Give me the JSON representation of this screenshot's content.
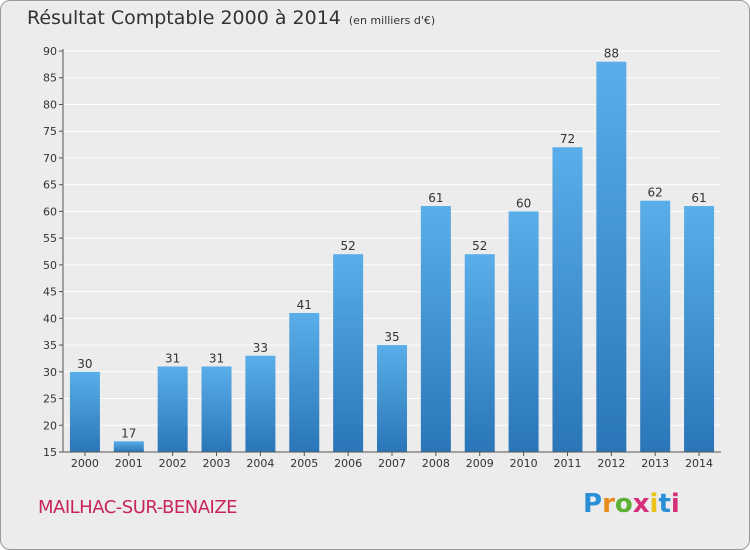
{
  "header": {
    "title": "Résultat Comptable 2000 à 2014",
    "subtitle": "(en milliers d'€)"
  },
  "commune": "MAILHAC-SUR-BENAIZE",
  "logo": {
    "letters": [
      "P",
      "r",
      "o",
      "x",
      "i",
      "t",
      "i"
    ],
    "colors": [
      "#2a8fd6",
      "#e98a1a",
      "#5db134",
      "#d62f7a",
      "#e9c21a",
      "#2a8fd6",
      "#d62f7a"
    ]
  },
  "colors": {
    "bar_top": "#5aaee9",
    "bar_bottom": "#2a76b8",
    "grid": "#ffffff",
    "axis": "#555555",
    "text": "#333333"
  },
  "chart_data": {
    "type": "bar",
    "title": "Résultat Comptable 2000 à 2014",
    "subtitle": "(en milliers d'€)",
    "categories": [
      "2000",
      "2001",
      "2002",
      "2003",
      "2004",
      "2005",
      "2006",
      "2007",
      "2008",
      "2009",
      "2010",
      "2011",
      "2012",
      "2013",
      "2014"
    ],
    "values": [
      30,
      17,
      31,
      31,
      33,
      41,
      52,
      35,
      61,
      52,
      60,
      72,
      88,
      62,
      61
    ],
    "ylim": [
      15,
      90
    ],
    "yticks": [
      15,
      20,
      25,
      30,
      35,
      40,
      45,
      50,
      55,
      60,
      65,
      70,
      75,
      80,
      85,
      90
    ],
    "grid": true,
    "data_labels": true
  }
}
